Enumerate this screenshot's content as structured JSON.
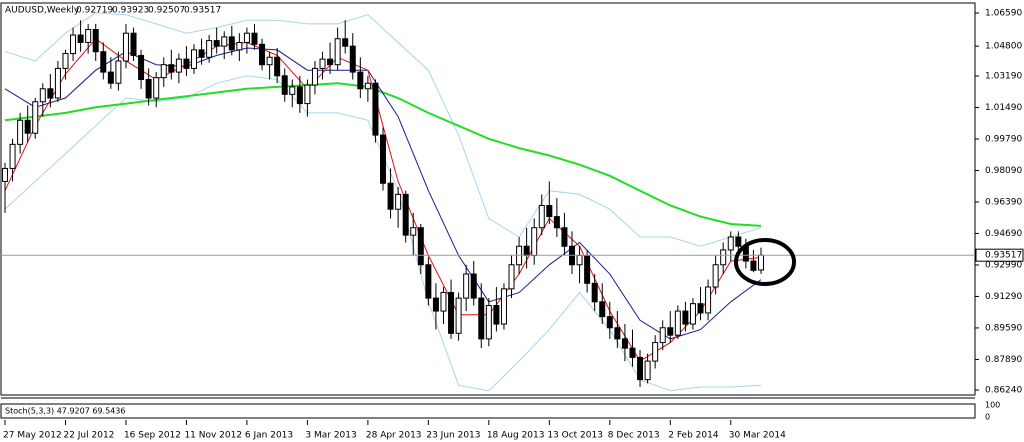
{
  "chart_data": {
    "type": "candlestick",
    "title": "AUDUSD,Weekly",
    "bull_color": "#ffffff",
    "bear_color": "#000000",
    "ylim": [
      0.8597,
      1.0713
    ],
    "yticks": [
      {
        "value": 1.0659,
        "label": "1.06590"
      },
      {
        "value": 1.048,
        "label": "1.04800"
      },
      {
        "value": 1.0319,
        "label": "1.03190"
      },
      {
        "value": 1.0149,
        "label": "1.01490"
      },
      {
        "value": 0.9979,
        "label": "0.99790"
      },
      {
        "value": 0.9809,
        "label": "0.98090"
      },
      {
        "value": 0.9639,
        "label": "0.96390"
      },
      {
        "value": 0.9469,
        "label": "0.94690"
      },
      {
        "value": 0.9299,
        "label": "0.92990"
      },
      {
        "value": 0.9129,
        "label": "0.91290"
      },
      {
        "value": 0.8959,
        "label": "0.89590"
      },
      {
        "value": 0.8789,
        "label": "0.87890"
      },
      {
        "value": 0.8624,
        "label": "0.86240"
      }
    ],
    "categories": [
      "27 May 2012",
      null,
      null,
      null,
      null,
      null,
      null,
      null,
      "22 Jul 2012",
      null,
      null,
      null,
      null,
      null,
      null,
      null,
      "16 Sep 2012",
      null,
      null,
      null,
      null,
      null,
      null,
      null,
      "11 Nov 2012",
      null,
      null,
      null,
      null,
      null,
      null,
      null,
      "6 Jan 2013",
      null,
      null,
      null,
      null,
      null,
      null,
      null,
      "3 Mar 2013",
      null,
      null,
      null,
      null,
      null,
      null,
      null,
      "28 Apr 2013",
      null,
      null,
      null,
      null,
      null,
      null,
      null,
      "23 Jun 2013",
      null,
      null,
      null,
      null,
      null,
      null,
      null,
      "18 Aug 2013",
      null,
      null,
      null,
      null,
      null,
      null,
      null,
      "13 Oct 2013",
      null,
      null,
      null,
      null,
      null,
      null,
      null,
      "8 Dec 2013",
      null,
      null,
      null,
      null,
      null,
      null,
      null,
      "2 Feb 2014",
      null,
      null,
      null,
      null,
      null,
      null,
      null,
      "30 Mar 2014",
      null,
      null,
      null,
      null
    ],
    "ohlc": [
      [
        0.975,
        0.985,
        0.958,
        0.982
      ],
      [
        0.982,
        0.998,
        0.975,
        0.995
      ],
      [
        0.995,
        1.012,
        0.99,
        1.008
      ],
      [
        1.008,
        1.016,
        0.996,
        1.001
      ],
      [
        1.001,
        1.02,
        0.998,
        1.018
      ],
      [
        1.018,
        1.028,
        1.01,
        1.025
      ],
      [
        1.025,
        1.033,
        1.015,
        1.02
      ],
      [
        1.02,
        1.04,
        1.018,
        1.036
      ],
      [
        1.036,
        1.046,
        1.03,
        1.044
      ],
      [
        1.044,
        1.058,
        1.04,
        1.054
      ],
      [
        1.054,
        1.062,
        1.045,
        1.05
      ],
      [
        1.05,
        1.06,
        1.044,
        1.057
      ],
      [
        1.057,
        1.06,
        1.04,
        1.045
      ],
      [
        1.045,
        1.05,
        1.03,
        1.034
      ],
      [
        1.034,
        1.042,
        1.025,
        1.028
      ],
      [
        1.028,
        1.045,
        1.024,
        1.04
      ],
      [
        1.04,
        1.06,
        1.036,
        1.055
      ],
      [
        1.055,
        1.058,
        1.04,
        1.043
      ],
      [
        1.043,
        1.046,
        1.025,
        1.03
      ],
      [
        1.03,
        1.036,
        1.016,
        1.02
      ],
      [
        1.02,
        1.034,
        1.015,
        1.031
      ],
      [
        1.031,
        1.042,
        1.026,
        1.038
      ],
      [
        1.038,
        1.046,
        1.03,
        1.034
      ],
      [
        1.034,
        1.044,
        1.028,
        1.041
      ],
      [
        1.041,
        1.048,
        1.032,
        1.036
      ],
      [
        1.036,
        1.049,
        1.033,
        1.046
      ],
      [
        1.046,
        1.052,
        1.038,
        1.042
      ],
      [
        1.042,
        1.054,
        1.039,
        1.051
      ],
      [
        1.051,
        1.058,
        1.044,
        1.048
      ],
      [
        1.048,
        1.056,
        1.041,
        1.053
      ],
      [
        1.053,
        1.059,
        1.043,
        1.046
      ],
      [
        1.046,
        1.055,
        1.04,
        1.05
      ],
      [
        1.05,
        1.058,
        1.044,
        1.055
      ],
      [
        1.055,
        1.06,
        1.046,
        1.049
      ],
      [
        1.049,
        1.052,
        1.035,
        1.038
      ],
      [
        1.038,
        1.045,
        1.03,
        1.042
      ],
      [
        1.042,
        1.047,
        1.028,
        1.032
      ],
      [
        1.032,
        1.036,
        1.018,
        1.022
      ],
      [
        1.022,
        1.03,
        1.015,
        1.026
      ],
      [
        1.026,
        1.032,
        1.012,
        1.017
      ],
      [
        1.017,
        1.03,
        1.01,
        1.027
      ],
      [
        1.027,
        1.04,
        1.022,
        1.036
      ],
      [
        1.036,
        1.045,
        1.03,
        1.041
      ],
      [
        1.041,
        1.05,
        1.033,
        1.038
      ],
      [
        1.038,
        1.058,
        1.035,
        1.052
      ],
      [
        1.052,
        1.062,
        1.044,
        1.048
      ],
      [
        1.048,
        1.055,
        1.03,
        1.034
      ],
      [
        1.034,
        1.042,
        1.02,
        1.025
      ],
      [
        1.025,
        1.032,
        1.018,
        1.028
      ],
      [
        1.028,
        1.03,
        0.996,
        1.0
      ],
      [
        1.0,
        1.004,
        0.97,
        0.974
      ],
      [
        0.974,
        0.982,
        0.955,
        0.96
      ],
      [
        0.96,
        0.972,
        0.95,
        0.968
      ],
      [
        0.968,
        0.97,
        0.942,
        0.946
      ],
      [
        0.946,
        0.958,
        0.935,
        0.95
      ],
      [
        0.95,
        0.952,
        0.925,
        0.93
      ],
      [
        0.93,
        0.934,
        0.908,
        0.912
      ],
      [
        0.912,
        0.92,
        0.895,
        0.905
      ],
      [
        0.905,
        0.918,
        0.898,
        0.915
      ],
      [
        0.915,
        0.922,
        0.89,
        0.893
      ],
      [
        0.893,
        0.915,
        0.889,
        0.912
      ],
      [
        0.912,
        0.93,
        0.905,
        0.925
      ],
      [
        0.925,
        0.932,
        0.908,
        0.912
      ],
      [
        0.912,
        0.92,
        0.885,
        0.89
      ],
      [
        0.89,
        0.912,
        0.886,
        0.908
      ],
      [
        0.908,
        0.918,
        0.894,
        0.898
      ],
      [
        0.898,
        0.92,
        0.895,
        0.917
      ],
      [
        0.917,
        0.935,
        0.912,
        0.93
      ],
      [
        0.93,
        0.945,
        0.925,
        0.94
      ],
      [
        0.94,
        0.95,
        0.928,
        0.935
      ],
      [
        0.935,
        0.955,
        0.93,
        0.95
      ],
      [
        0.95,
        0.968,
        0.946,
        0.962
      ],
      [
        0.962,
        0.975,
        0.952,
        0.956
      ],
      [
        0.956,
        0.966,
        0.945,
        0.95
      ],
      [
        0.95,
        0.958,
        0.935,
        0.94
      ],
      [
        0.94,
        0.948,
        0.925,
        0.93
      ],
      [
        0.93,
        0.94,
        0.92,
        0.935
      ],
      [
        0.935,
        0.938,
        0.915,
        0.92
      ],
      [
        0.92,
        0.925,
        0.905,
        0.91
      ],
      [
        0.91,
        0.92,
        0.898,
        0.902
      ],
      [
        0.902,
        0.91,
        0.89,
        0.896
      ],
      [
        0.896,
        0.905,
        0.885,
        0.89
      ],
      [
        0.89,
        0.898,
        0.878,
        0.885
      ],
      [
        0.885,
        0.895,
        0.875,
        0.88
      ],
      [
        0.88,
        0.884,
        0.864,
        0.868
      ],
      [
        0.868,
        0.882,
        0.866,
        0.878
      ],
      [
        0.878,
        0.892,
        0.874,
        0.888
      ],
      [
        0.888,
        0.9,
        0.884,
        0.896
      ],
      [
        0.896,
        0.905,
        0.888,
        0.892
      ],
      [
        0.892,
        0.908,
        0.89,
        0.905
      ],
      [
        0.905,
        0.91,
        0.894,
        0.898
      ],
      [
        0.898,
        0.912,
        0.895,
        0.909
      ],
      [
        0.909,
        0.918,
        0.9,
        0.904
      ],
      [
        0.904,
        0.922,
        0.9,
        0.918
      ],
      [
        0.918,
        0.935,
        0.914,
        0.93
      ],
      [
        0.93,
        0.942,
        0.925,
        0.938
      ],
      [
        0.938,
        0.948,
        0.932,
        0.945
      ],
      [
        0.945,
        0.948,
        0.935,
        0.94
      ],
      [
        0.94,
        0.944,
        0.928,
        0.932
      ],
      [
        0.932,
        0.938,
        0.926,
        0.927
      ],
      [
        0.92719,
        0.93923,
        0.92507,
        0.93517
      ]
    ],
    "overlay_x": [
      0,
      4,
      8,
      12,
      16,
      20,
      24,
      28,
      32,
      36,
      40,
      44,
      48,
      52,
      56,
      60,
      64,
      68,
      72,
      76,
      80,
      84,
      88,
      92,
      96,
      100
    ],
    "overlays": [
      {
        "color": "#a8d4ec",
        "values": [
          1.045,
          1.04,
          1.055,
          1.066,
          1.065,
          1.06,
          1.055,
          1.058,
          1.062,
          1.062,
          1.06,
          1.06,
          1.065,
          1.05,
          1.035,
          1.0,
          0.955,
          0.945,
          0.97,
          0.968,
          0.96,
          0.945,
          0.945,
          0.94,
          0.945,
          0.95
        ]
      },
      {
        "color": "#a8d4ec",
        "values": [
          0.96,
          0.975,
          0.99,
          1.005,
          1.02,
          1.018,
          1.02,
          1.028,
          1.032,
          1.03,
          1.012,
          1.012,
          1.008,
          0.97,
          0.91,
          0.865,
          0.862,
          0.878,
          0.895,
          0.915,
          0.895,
          0.868,
          0.862,
          0.864,
          0.864,
          0.865
        ]
      },
      {
        "color": "#22dd22",
        "values": [
          1.008,
          1.01,
          1.012,
          1.015,
          1.017,
          1.019,
          1.021,
          1.023,
          1.025,
          1.026,
          1.027,
          1.028,
          1.026,
          1.02,
          1.012,
          1.005,
          0.998,
          0.993,
          0.989,
          0.984,
          0.978,
          0.97,
          0.962,
          0.956,
          0.952,
          0.951
        ]
      },
      {
        "color": "#1a1a99",
        "values": [
          1.025,
          1.015,
          1.02,
          1.035,
          1.045,
          1.038,
          1.037,
          1.043,
          1.047,
          1.046,
          1.035,
          1.035,
          1.035,
          1.01,
          0.97,
          0.935,
          0.91,
          0.915,
          0.93,
          0.942,
          0.925,
          0.9,
          0.89,
          0.895,
          0.91,
          0.922
        ]
      },
      {
        "color": "#e01010",
        "values": [
          0.97,
          1.005,
          1.033,
          1.052,
          1.04,
          1.03,
          1.038,
          1.048,
          1.05,
          1.043,
          1.025,
          1.042,
          1.035,
          0.975,
          0.935,
          0.903,
          0.903,
          0.925,
          0.955,
          0.94,
          0.905,
          0.878,
          0.888,
          0.905,
          0.932,
          0.934
        ]
      }
    ],
    "indicator": {
      "label": "Stoch(5,3,3) 47.9207 69.5436",
      "ylim": [
        0,
        100
      ],
      "yticks": [
        100,
        0
      ]
    }
  }
}
